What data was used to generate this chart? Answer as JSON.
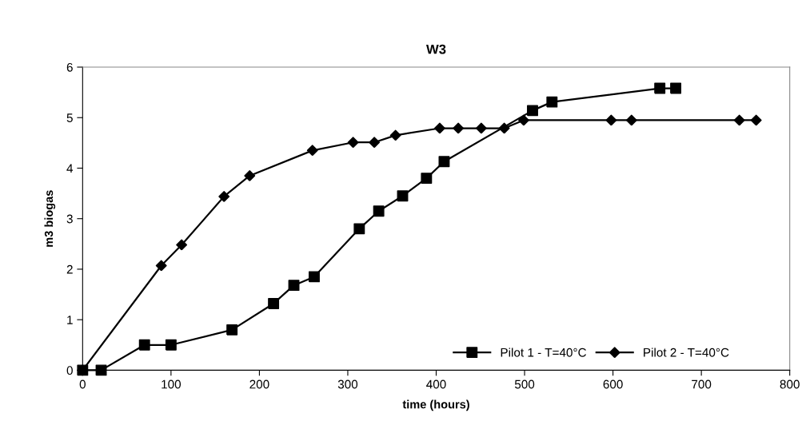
{
  "chart_data": {
    "type": "line",
    "title": "W3",
    "xlabel": "time (hours)",
    "ylabel": "m3 biogas",
    "xlim": [
      0,
      800
    ],
    "xticks": [
      0,
      100,
      200,
      300,
      400,
      500,
      600,
      700,
      800
    ],
    "ylim": [
      0,
      6
    ],
    "yticks": [
      0,
      1,
      2,
      3,
      4,
      5,
      6
    ],
    "grid": false,
    "legend": "bottom right",
    "series": [
      {
        "name": "Pilot 1 - T=40°C",
        "color": "#000000",
        "marker": "square",
        "x": [
          0,
          21,
          70,
          100,
          169,
          216,
          239,
          262,
          313,
          335,
          362,
          389,
          409,
          509,
          531,
          653,
          671
        ],
        "values": [
          0,
          0,
          0.5,
          0.5,
          0.8,
          1.32,
          1.68,
          1.85,
          2.8,
          3.15,
          3.45,
          3.8,
          4.13,
          5.14,
          5.31,
          5.58,
          5.58
        ]
      },
      {
        "name": "Pilot 2 - T=40°C",
        "color": "#000000",
        "marker": "diamond",
        "x": [
          0,
          89,
          112,
          160,
          189,
          260,
          306,
          330,
          354,
          404,
          425,
          451,
          477,
          499,
          598,
          621,
          743,
          762
        ],
        "values": [
          0,
          2.07,
          2.48,
          3.44,
          3.85,
          4.35,
          4.51,
          4.51,
          4.65,
          4.79,
          4.79,
          4.79,
          4.79,
          4.95,
          4.95,
          4.95,
          4.95,
          4.95
        ]
      }
    ]
  }
}
